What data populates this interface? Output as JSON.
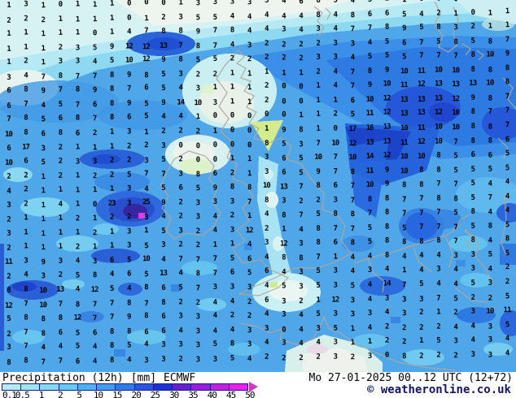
{
  "map": {
    "base_color": "#4FA6E9",
    "coast_color": "#B2A69A",
    "value_color": "#000000",
    "palette": {
      "pale_white": "#EEF5EF",
      "pale_cyan": "#D6F2F3",
      "light_cyan": "#A9E4F2",
      "cyan": "#7DD2F1",
      "mid_dark": "#2E7AE2",
      "dark_blue": "#2458D8",
      "navy": "#1E46CE",
      "deep_violet": "#35279F",
      "magenta_spot": "#E23AE2",
      "green_patch": "#D2EC8E"
    },
    "grid_rows": [
      "1 3 1 0 1 1 1 0 0 0 1 3 3 3 3 3 4 6 8 5 4 3 2 1 0 0 0 1 1 0",
      "2 2 2 1 1 1 1 0 1 2 3 5 5 4 4 4 4 4 8 4 8 6 6 5 4 2 1 0 1 1",
      "1 1 1 1 1 0 1 4 7 8 8 9 7 8 4 4 3 4 3 4 7 7 8 9 5 8 3 2 1 1",
      "1 1 1 2 3 5 9 12 12 13 7 8 7 4 3 2 2 2 2 3 3 4 5 6 7 5 8 5 8 7",
      "1 2 1 3 3 4 5 10 12 9 8 5 5 2 2 2 2 2 3 3 4 5 5 5 7 7 7 8 10 9",
      "3 4 7 8 7 7 8 9 8 5 3 2 2 1 1 1 1 1 2 4 7 8 9 10 11 10 10 8 8 8",
      "6 8 9 7 8 9 8 7 6 5 4 3 1 1 1 2 0 0 1 4 7 9 10 11 12 13 13 13 10 8",
      "6 7 4 5 7 6 8 9 5 9 14 10 3 1 1 2 0 0 1 1 6 10 12 13 13 13 12 9 8 7",
      "7 8 5 6 8 7 8 6 5 4 4 1 0 0 0 0 0 1 1 2 5 11 12 13 13 12 10 8 7 7",
      "10 8 6 8 6 2 1 3 1 2 2 2 1 0 0 1 9 8 1 0 17 16 13 10 11 10 10 8 8 7",
      "6 17 3 2 1 1 1 2 2 3 0 0 0 0 0 8 5 3 7 10 12 13 13 11 12 10 7 8 8 6",
      "10 6 5 2 3 3 2 2 3 5 2 0 0 1 1 3 6 5 10 7 10 14 12 10 10 8 5 6 6 5",
      "2 2 1 2 1 2 2 5 7 7 3 8 6 2 1 3 6 5 9 7 8 11 9 10 8 8 5 5 5 5",
      "4 2 1 1 1 1 1 3 4 5 6 5 9 8 8 10 13 7 8 6 7 10 9 8 8 7 7 5 4 4",
      "3 2 1 4 1 0 23 3 25 9 2 3 3 3 7 8 3 2 2 3 7 8 8 7 7 8 8 5 7 4",
      "2 1 1 1 2 1 2 2 3 4 2 3 4 2 1 4 8 7 5 8 8 7 8 7 7 7 5 8 4 4",
      "3 1 1 1 1 2 1 3 1 5 3 2 4 3 12 2 1 4 8 7 7 5 8 5 7 7 7 5 8 5",
      "2 1 1 1 2 1 1 3 5 3 2 2 1 1 4 3 12 3 8 6 8 5 8 8 8 8 7 8 4 8",
      "11 3 9 3 4 3 6 5 10 4 7 7 7 5 6 4 8 8 7 1 4 4 8 4 4 4 3 3 5 5",
      "2 4 3 2 5 8 4 6 5 13 4 8 7 6 5 6 4 3 5 3 4 3 4 1 4 3 4 3 4 2",
      "8 8 10 13 4 12 5 4 8 6 5 7 3 3 3 4 5 3 5 3 5 4 14 7 5 4 4 5 3 2",
      "12 7 10 7 8 7 7 8 7 8 2 2 4 4 2 6 3 2 1 12 3 4 3 3 3 7 5 2 2 5",
      "5 8 8 8 12 7 7 9 8 6 3 3 4 2 2 4 3 4 5 3 3 3 4 3 2 1 2 3 10 11",
      "2 7 8 6 5 6 8 8 6 6 4 3 4 4 3 3 0 4 3 5 1 4 2 2 2 2 4 4 3 5",
      "3 7 4 4 5 4 8 5 4 3 3 3 5 8 3 4 3 4 4 3 1 1 2 2 1 5 3 4 3 4",
      "8 8 7 7 6 4 8 4 3 3 2 3 3 5 4 2 2 2 2 3 2 3 0 8 2 2 2 3 3 4"
    ]
  },
  "legend": {
    "labels": [
      "0.1",
      "0.5",
      "1",
      "2",
      "5",
      "10",
      "15",
      "20",
      "25",
      "30",
      "35",
      "40",
      "45",
      "50"
    ],
    "segment_colors": [
      "#B4ECF0",
      "#9CE6EE",
      "#84DAEE",
      "#64CCF0",
      "#4CB2F0",
      "#3E9EF2",
      "#2E7CEA",
      "#2656E2",
      "#1C32D4",
      "#6420CC",
      "#9820DA",
      "#C420E4",
      "#EC20EE"
    ],
    "arrow_color": "#CC3CB8",
    "border_color": "#1A1A8C"
  },
  "footer": {
    "product": "Precipitation (12h)",
    "unit": "[mm]",
    "model": "ECMWF",
    "datetime": "Mo 27-01-2025 00..12 UTC (12+72)",
    "copyright": "© weatheronline.co.uk"
  }
}
